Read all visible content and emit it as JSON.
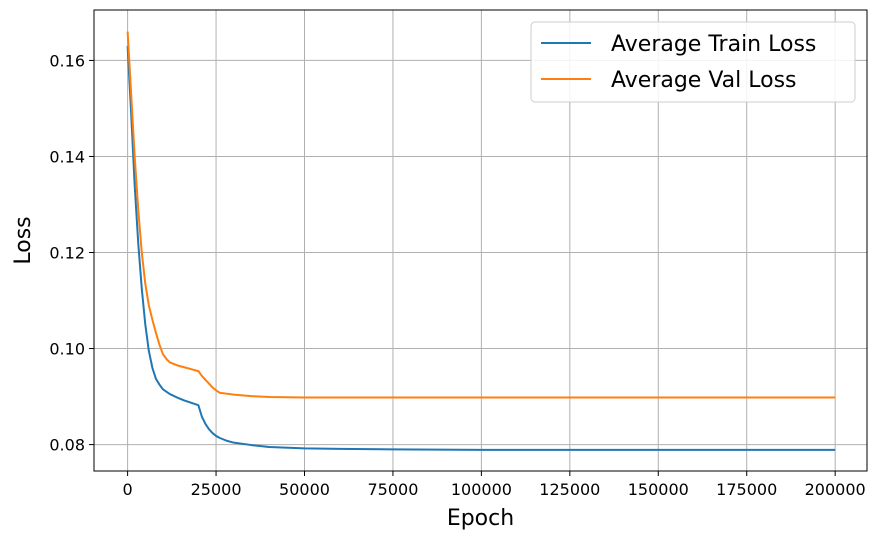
{
  "chart_data": {
    "type": "line",
    "xlabel": "Epoch",
    "ylabel": "Loss",
    "xlim": [
      -9500,
      209000
    ],
    "ylim": [
      0.0745,
      0.1705
    ],
    "xticks": [
      0,
      25000,
      50000,
      75000,
      100000,
      125000,
      150000,
      175000,
      200000
    ],
    "xtick_labels": [
      "0",
      "25000",
      "50000",
      "75000",
      "100000",
      "125000",
      "150000",
      "175000",
      "200000"
    ],
    "yticks": [
      0.08,
      0.1,
      0.12,
      0.14,
      0.16
    ],
    "ytick_labels": [
      "0.08",
      "0.10",
      "0.12",
      "0.14",
      "0.16"
    ],
    "grid": true,
    "legend_position": "top-right",
    "series": [
      {
        "name": "Average Train Loss",
        "color": "#1f77b4",
        "x": [
          0,
          1000,
          2000,
          3000,
          4000,
          5000,
          6000,
          7000,
          8000,
          9000,
          10000,
          11000,
          12000,
          14000,
          16000,
          18000,
          20000,
          21000,
          22000,
          23000,
          24000,
          25000,
          26000,
          28000,
          30000,
          35000,
          40000,
          50000,
          60000,
          75000,
          100000,
          125000,
          150000,
          175000,
          200000
        ],
        "y": [
          0.163,
          0.149,
          0.134,
          0.122,
          0.1125,
          0.105,
          0.0995,
          0.096,
          0.0937,
          0.0925,
          0.0915,
          0.091,
          0.0905,
          0.0898,
          0.0892,
          0.0887,
          0.0882,
          0.0858,
          0.0843,
          0.0832,
          0.0824,
          0.0818,
          0.0814,
          0.0808,
          0.0804,
          0.0799,
          0.0795,
          0.0792,
          0.0791,
          0.079,
          0.0789,
          0.0789,
          0.0789,
          0.0789,
          0.0789
        ]
      },
      {
        "name": "Average Val Loss",
        "color": "#ff7f0e",
        "x": [
          0,
          1000,
          2000,
          3000,
          4000,
          5000,
          6000,
          7000,
          8000,
          9000,
          10000,
          11000,
          12000,
          14000,
          16000,
          18000,
          20000,
          21000,
          22000,
          23000,
          24000,
          25000,
          26000,
          28000,
          30000,
          35000,
          40000,
          50000,
          60000,
          75000,
          100000,
          125000,
          150000,
          175000,
          200000
        ],
        "y": [
          0.166,
          0.153,
          0.14,
          0.129,
          0.12,
          0.1135,
          0.109,
          0.106,
          0.1033,
          0.1008,
          0.0988,
          0.0978,
          0.0971,
          0.0965,
          0.0961,
          0.0957,
          0.0953,
          0.0943,
          0.0935,
          0.0927,
          0.0919,
          0.0913,
          0.0908,
          0.0906,
          0.0904,
          0.0901,
          0.0899,
          0.0898,
          0.0898,
          0.0898,
          0.0898,
          0.0898,
          0.0898,
          0.0898,
          0.0898
        ]
      }
    ]
  }
}
